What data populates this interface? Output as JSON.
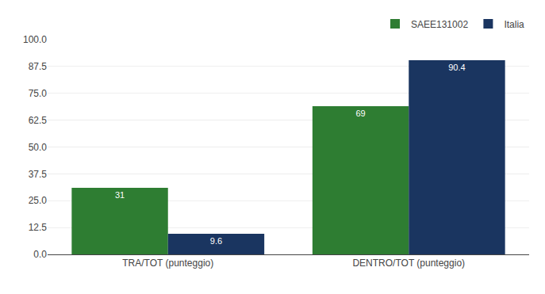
{
  "chart_data": {
    "type": "bar",
    "categories": [
      "TRA/TOT (punteggio)",
      "DENTRO/TOT (punteggio)"
    ],
    "series": [
      {
        "name": "SAEE131002",
        "color": "#2e7d32",
        "values": [
          31,
          69
        ]
      },
      {
        "name": "Italia",
        "color": "#1a3560",
        "values": [
          9.6,
          90.4
        ]
      }
    ],
    "ylim": [
      0,
      100
    ],
    "yticks": [
      {
        "value": 0,
        "label": "0.0"
      },
      12.5,
      {
        "value": 25,
        "label": "25.0"
      },
      37.5,
      {
        "value": 50,
        "label": "50.0"
      },
      62.5,
      {
        "value": 75,
        "label": "75.0"
      },
      87.5,
      {
        "value": 100,
        "label": "100.0"
      }
    ],
    "grid": true,
    "legend": "upper right",
    "data_labels": true
  }
}
